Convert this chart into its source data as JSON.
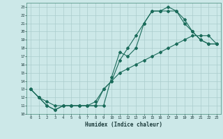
{
  "xlabel": "Humidex (Indice chaleur)",
  "xlim": [
    -0.5,
    23.5
  ],
  "ylim": [
    10,
    23.5
  ],
  "yticks": [
    10,
    11,
    12,
    13,
    14,
    15,
    16,
    17,
    18,
    19,
    20,
    21,
    22,
    23
  ],
  "xticks": [
    0,
    1,
    2,
    3,
    4,
    5,
    6,
    7,
    8,
    9,
    10,
    11,
    12,
    13,
    14,
    15,
    16,
    17,
    18,
    19,
    20,
    21,
    22,
    23
  ],
  "bg_color": "#cce8e8",
  "line_color": "#1a6b5a",
  "grid_color": "#aacccc",
  "line1_x": [
    0,
    1,
    2,
    3,
    4,
    5,
    6,
    7,
    8,
    9,
    10,
    11,
    12,
    13,
    14,
    15,
    16,
    17,
    18,
    19,
    20,
    21,
    22,
    23
  ],
  "line1_y": [
    13,
    12,
    11,
    10.5,
    11,
    11,
    11,
    11,
    11,
    13,
    14,
    16.5,
    18,
    19.5,
    21,
    22.5,
    22.5,
    23,
    22.5,
    21,
    20,
    19,
    18.5,
    18.5
  ],
  "line2_x": [
    0,
    1,
    2,
    3,
    4,
    5,
    6,
    7,
    8,
    9,
    10,
    11,
    12,
    13,
    14,
    15,
    16,
    17,
    18,
    19,
    20,
    21,
    22,
    23
  ],
  "line2_y": [
    13,
    12,
    11,
    10.5,
    11,
    11,
    11,
    11,
    11,
    11,
    14.5,
    17.5,
    17,
    18,
    21,
    22.5,
    22.5,
    22.5,
    22.5,
    21.5,
    20,
    19,
    18.5,
    18.5
  ],
  "line3_x": [
    0,
    1,
    2,
    3,
    4,
    5,
    6,
    7,
    8,
    9,
    10,
    11,
    12,
    13,
    14,
    15,
    16,
    17,
    18,
    19,
    20,
    21,
    22,
    23
  ],
  "line3_y": [
    13,
    12,
    11.5,
    11,
    11,
    11,
    11,
    11,
    11.5,
    13,
    14,
    15,
    15.5,
    16,
    16.5,
    17,
    17.5,
    18,
    18.5,
    19,
    19.5,
    19.5,
    19.5,
    18.5
  ]
}
